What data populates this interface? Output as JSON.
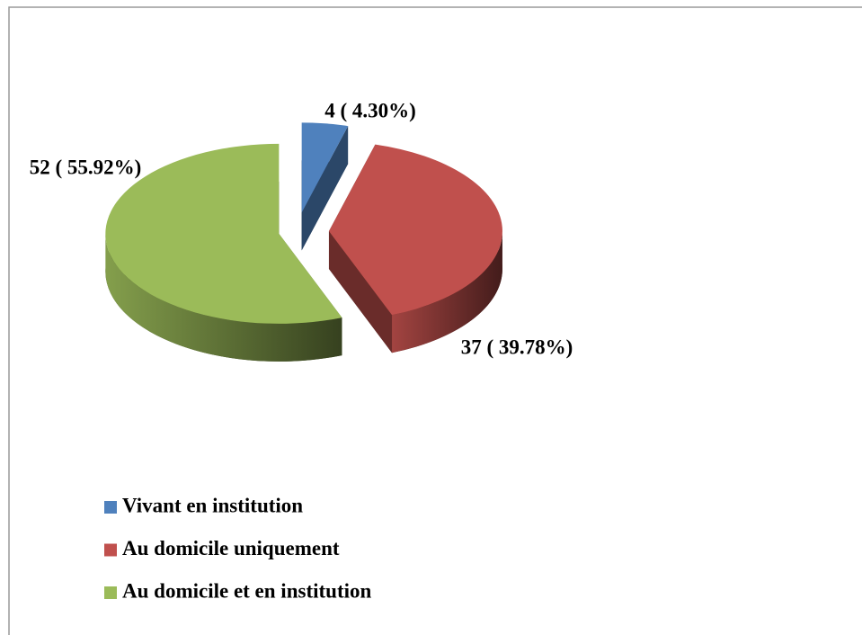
{
  "chart_data": {
    "type": "pie",
    "categories": [
      "Vivant en institution",
      "Au domicile uniquement",
      "Au domicile et en institution"
    ],
    "values": [
      4,
      37,
      52
    ],
    "value_labels": [
      "4 ( 4.30%)",
      "37 ( 39.78%)",
      "52 ( 55.92%)"
    ],
    "colors": [
      "#4f81bd",
      "#c0504d",
      "#9bbb59"
    ],
    "legend": "bottom-left"
  }
}
